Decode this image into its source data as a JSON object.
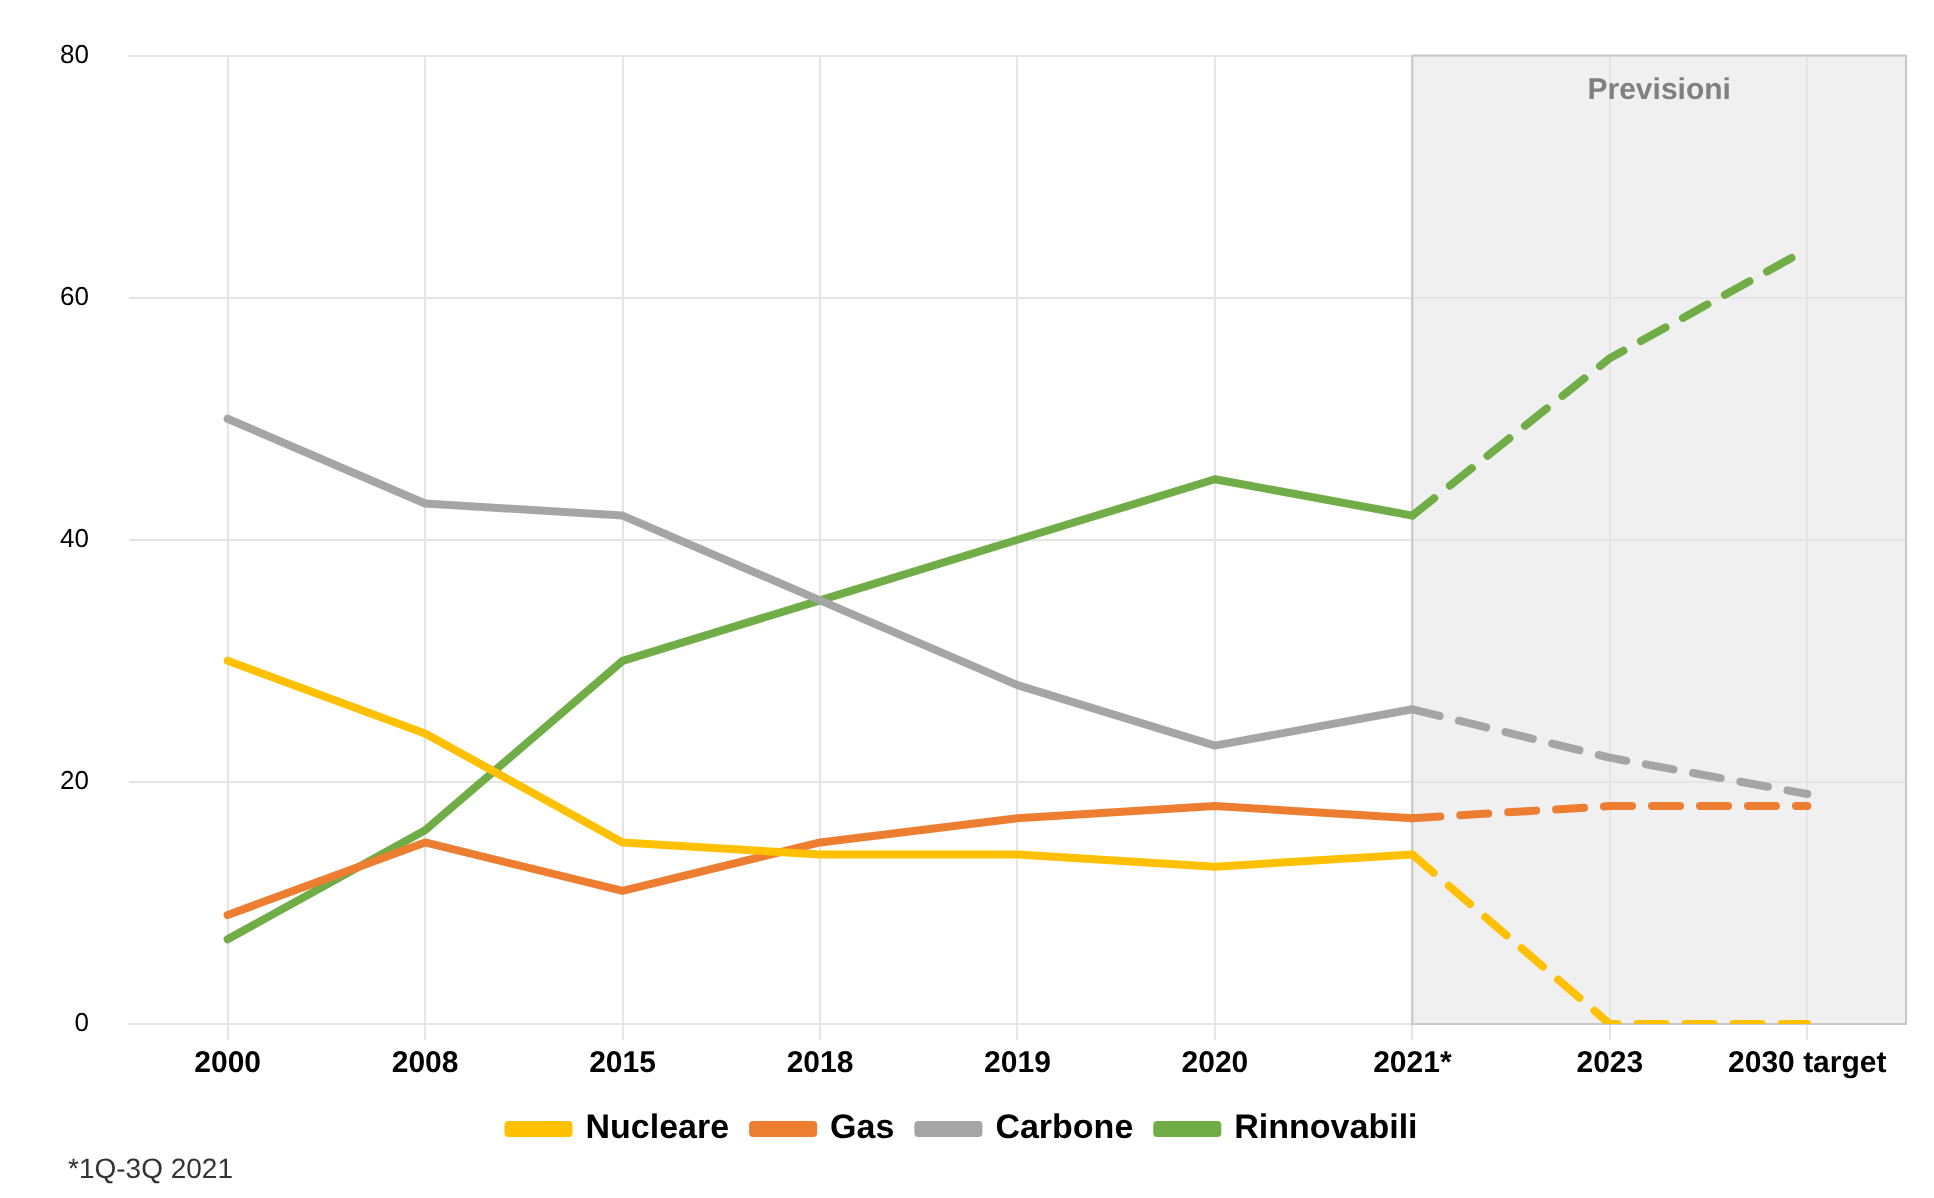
{
  "chart_data": {
    "type": "line",
    "categories": [
      "2000",
      "2008",
      "2015",
      "2018",
      "2019",
      "2020",
      "2021*",
      "2023",
      "2030 target"
    ],
    "series": [
      {
        "name": "Nucleare",
        "color": "#ffc000",
        "values": [
          30,
          24,
          15,
          14,
          14,
          13,
          14,
          0,
          0
        ]
      },
      {
        "name": "Gas",
        "color": "#ed7d31",
        "values": [
          9,
          15,
          11,
          15,
          17,
          18,
          17,
          18,
          18
        ]
      },
      {
        "name": "Carbone",
        "color": "#a5a5a5",
        "values": [
          50,
          43,
          42,
          35,
          28,
          23,
          26,
          22,
          19
        ]
      },
      {
        "name": "Rinnovabili",
        "color": "#70ad47",
        "values": [
          7,
          16,
          30,
          35,
          40,
          45,
          42,
          55,
          64
        ]
      }
    ],
    "ylim": [
      0,
      80
    ],
    "yticks": [
      0,
      20,
      40,
      60,
      80
    ],
    "grid": true,
    "legend": "bottom",
    "marker": "none",
    "line_style": "solid",
    "bands": [
      {
        "axis": "x",
        "from": "2021*",
        "to": "2030 target",
        "label": "Previsioni",
        "color": "#e6e6e6"
      }
    ],
    "annotations": [
      "*1Q-3Q 2021"
    ]
  }
}
